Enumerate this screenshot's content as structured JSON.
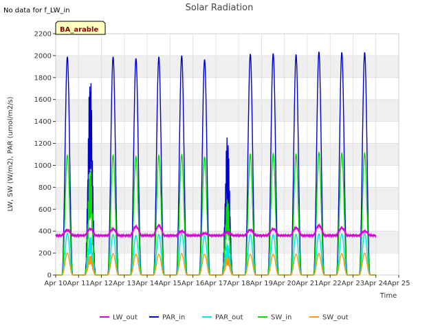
{
  "chart_data": {
    "type": "line",
    "title": "Solar Radiation",
    "note": "No data for f_LW_in",
    "badge": "BA_arable",
    "xlabel": "Time",
    "ylabel": "LW, SW (W/m2), PAR (umol/m2/s)",
    "xlim": [
      10,
      25
    ],
    "ylim": [
      0,
      2200
    ],
    "x_ticks": [
      {
        "v": 10,
        "label": "Apr 10"
      },
      {
        "v": 11,
        "label": "Apr 11"
      },
      {
        "v": 12,
        "label": "Apr 12"
      },
      {
        "v": 13,
        "label": "Apr 13"
      },
      {
        "v": 14,
        "label": "Apr 14"
      },
      {
        "v": 15,
        "label": "Apr 15"
      },
      {
        "v": 16,
        "label": "Apr 16"
      },
      {
        "v": 17,
        "label": "Apr 17"
      },
      {
        "v": 18,
        "label": "Apr 18"
      },
      {
        "v": 19,
        "label": "Apr 19"
      },
      {
        "v": 20,
        "label": "Apr 20"
      },
      {
        "v": 21,
        "label": "Apr 21"
      },
      {
        "v": 22,
        "label": "Apr 22"
      },
      {
        "v": 23,
        "label": "Apr 23"
      },
      {
        "v": 24,
        "label": "Apr 24"
      },
      {
        "v": 25,
        "label": "Apr 25"
      }
    ],
    "y_ticks": [
      0,
      200,
      400,
      600,
      800,
      1000,
      1200,
      1400,
      1600,
      1800,
      2000,
      2200
    ],
    "grid": true,
    "legend_position": "bottom",
    "colors": {
      "LW_out": "#dd00dd",
      "PAR_in": "#0000cc",
      "PAR_out": "#00e5ee",
      "SW_in": "#00dd00",
      "SW_out": "#ff9900"
    },
    "series": [
      {
        "name": "LW_out",
        "color": "#dd00dd",
        "style": "line"
      },
      {
        "name": "PAR_in",
        "color": "#0000cc",
        "style": "line"
      },
      {
        "name": "PAR_out",
        "color": "#00e5ee",
        "style": "line"
      },
      {
        "name": "SW_in",
        "color": "#00dd00",
        "style": "line"
      },
      {
        "name": "SW_out",
        "color": "#ff9900",
        "style": "line"
      }
    ],
    "daily_peaks": [
      {
        "day": "Apr 10",
        "PAR_in": 1990,
        "PAR_out": 380,
        "SW_in": 1090,
        "SW_out": 200,
        "LW_out": 410
      },
      {
        "day": "Apr 11",
        "PAR_in": 1870,
        "PAR_out": 370,
        "SW_in": 1010,
        "SW_out": 190,
        "LW_out": 420
      },
      {
        "day": "Apr 12",
        "PAR_in": 1990,
        "PAR_out": 370,
        "SW_in": 1090,
        "SW_out": 195,
        "LW_out": 420
      },
      {
        "day": "Apr 13",
        "PAR_in": 1975,
        "PAR_out": 360,
        "SW_in": 1080,
        "SW_out": 190,
        "LW_out": 440
      },
      {
        "day": "Apr 14",
        "PAR_in": 1990,
        "PAR_out": 370,
        "SW_in": 1090,
        "SW_out": 190,
        "LW_out": 450
      },
      {
        "day": "Apr 15",
        "PAR_in": 2000,
        "PAR_out": 380,
        "SW_in": 1095,
        "SW_out": 195,
        "LW_out": 400
      },
      {
        "day": "Apr 16",
        "PAR_in": 1965,
        "PAR_out": 360,
        "SW_in": 1075,
        "SW_out": 190,
        "LW_out": 380
      },
      {
        "day": "Apr 17",
        "PAR_in": 1310,
        "PAR_out": 300,
        "SW_in": 720,
        "SW_out": 170,
        "LW_out": 390
      },
      {
        "day": "Apr 18",
        "PAR_in": 2015,
        "PAR_out": 370,
        "SW_in": 1100,
        "SW_out": 190,
        "LW_out": 410
      },
      {
        "day": "Apr 19",
        "PAR_in": 2020,
        "PAR_out": 370,
        "SW_in": 1105,
        "SW_out": 190,
        "LW_out": 420
      },
      {
        "day": "Apr 20",
        "PAR_in": 2010,
        "PAR_out": 370,
        "SW_in": 1100,
        "SW_out": 190,
        "LW_out": 430
      },
      {
        "day": "Apr 21",
        "PAR_in": 2035,
        "PAR_out": 375,
        "SW_in": 1115,
        "SW_out": 195,
        "LW_out": 450
      },
      {
        "day": "Apr 22",
        "PAR_in": 2030,
        "PAR_out": 375,
        "SW_in": 1110,
        "SW_out": 195,
        "LW_out": 430
      },
      {
        "day": "Apr 23",
        "PAR_in": 2030,
        "PAR_out": 380,
        "SW_in": 1110,
        "SW_out": 200,
        "LW_out": 400
      }
    ],
    "night_LW_out": 360
  }
}
